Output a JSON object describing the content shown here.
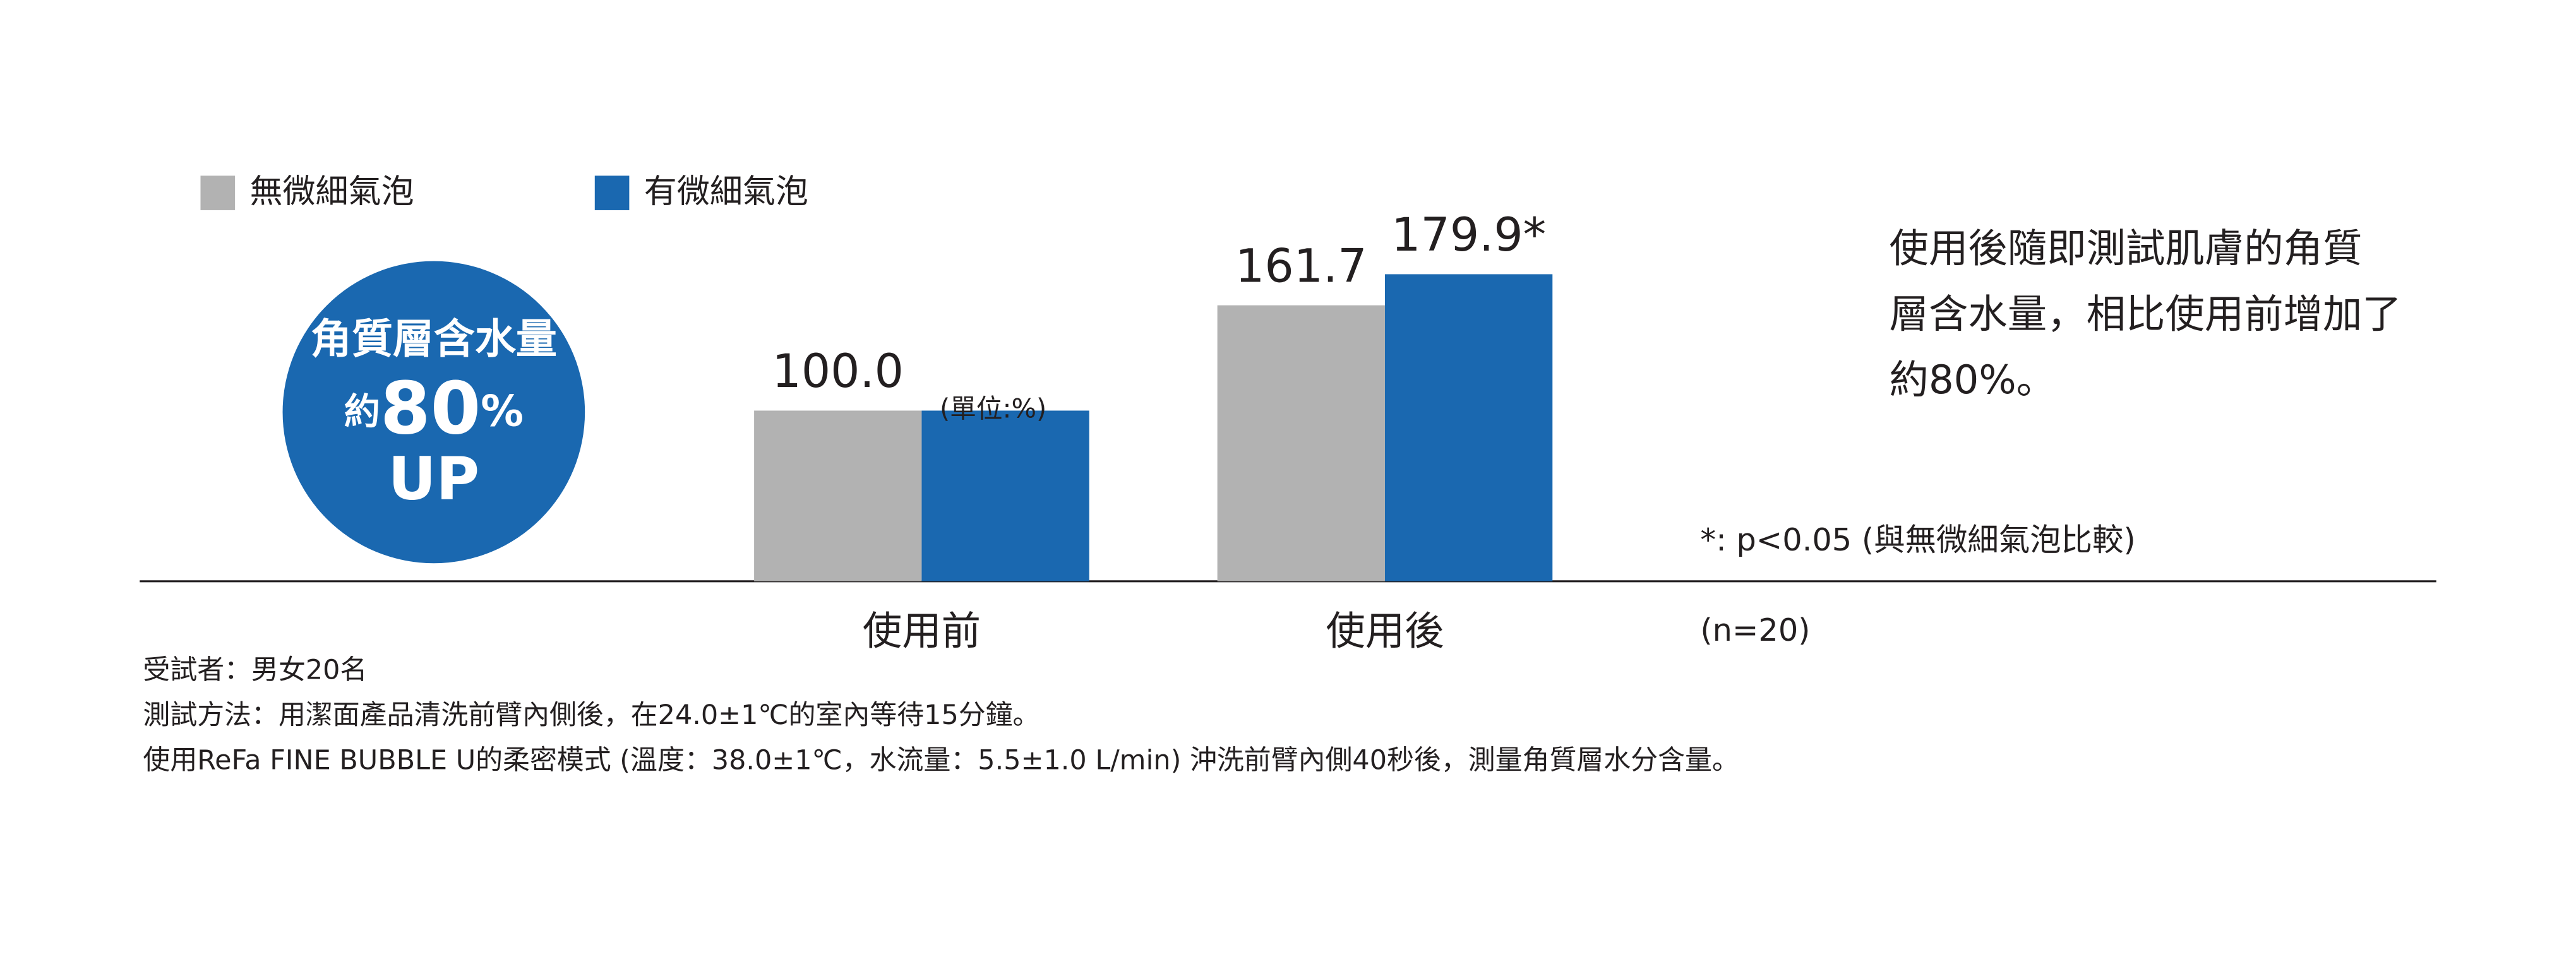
{
  "chart_data": {
    "type": "bar",
    "categories": [
      "使用前",
      "使用後"
    ],
    "series": [
      {
        "name": "無微細氣泡",
        "color": "#b2b2b2",
        "values": [
          100,
          161.7
        ],
        "value_labels": [
          "100.0",
          "161.7"
        ]
      },
      {
        "name": "有微細氣泡",
        "color": "#1a68b0",
        "values": [
          100,
          179.9
        ],
        "value_labels": [
          null,
          "179.9*"
        ]
      }
    ],
    "unit": "(單位:%)",
    "badge": {
      "line1": "角質層含水量",
      "line2": [
        "約",
        "80",
        "%"
      ],
      "line3": "UP",
      "color": "#1a68b0"
    },
    "note": [
      "使用後隨即測試肌膚的角質",
      "層含水量，相比使用前增加了",
      "約80%。"
    ],
    "significance": "*: p<0.05 (與無微細氣泡比較)",
    "sample": "(n=20)",
    "footnotes": [
      "受試者：男女20名",
      "測試方法：用潔面產品清洗前臂內側後，在24.0±1℃的室內等待15分鐘。",
      "使用ReFa FINE BUBBLE U的柔密模式 (溫度：38.0±1℃，水流量：5.5±1.0 L/min) 沖洗前臂內側40秒後，測量角質層水分含量。"
    ]
  }
}
